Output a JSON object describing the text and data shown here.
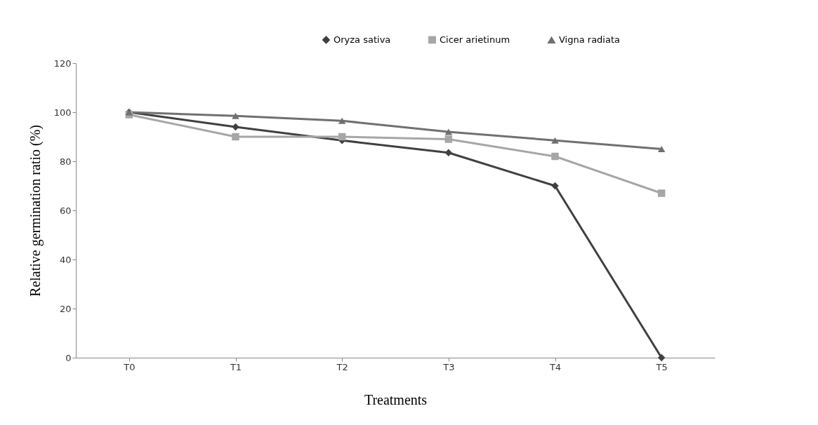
{
  "chart_data": {
    "type": "line",
    "xlabel": "Treatments",
    "ylabel": "Relative germination ratio (%)",
    "categories": [
      "T0",
      "T1",
      "T2",
      "T3",
      "T4",
      "T5"
    ],
    "series": [
      {
        "name": "Oryza sativa",
        "color": "#404040",
        "marker": "diamond",
        "values": [
          100,
          94,
          88.5,
          83.5,
          70,
          0
        ]
      },
      {
        "name": "Cicer arietinum",
        "color": "#a6a6a6",
        "marker": "square",
        "values": [
          99,
          90,
          90,
          89,
          82,
          67
        ]
      },
      {
        "name": "Vigna radiata",
        "color": "#707070",
        "marker": "triangle",
        "values": [
          100,
          98.5,
          96.5,
          92,
          88.5,
          85
        ]
      }
    ],
    "ylim": [
      0,
      120
    ],
    "yticks": [
      0,
      20,
      40,
      60,
      80,
      100,
      120
    ],
    "grid": false,
    "legend": "top right",
    "line_style": "solid"
  }
}
